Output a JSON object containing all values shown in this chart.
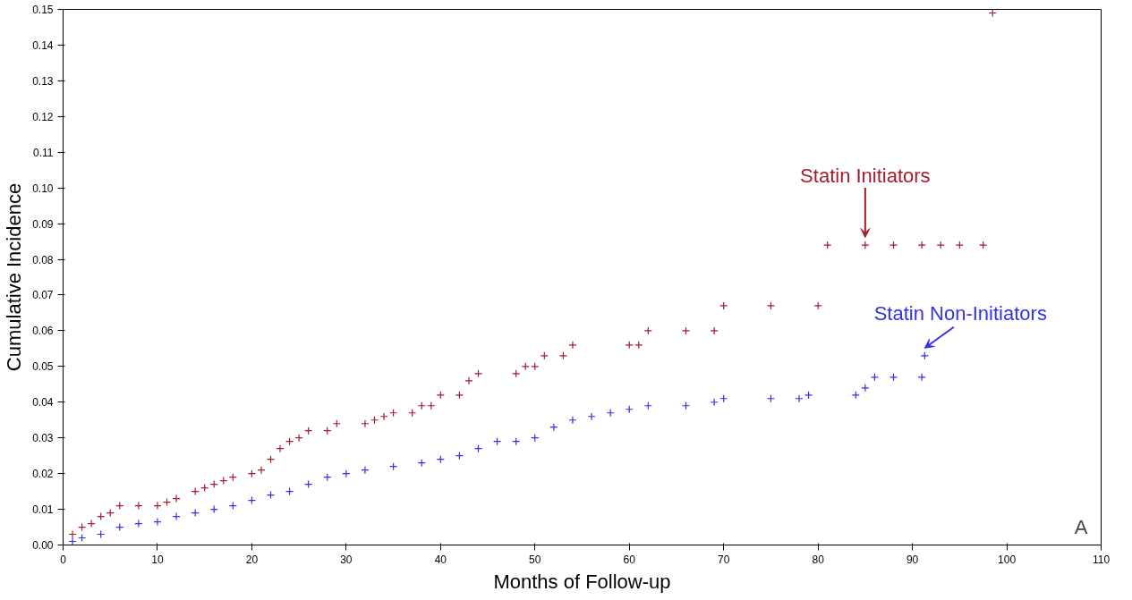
{
  "chart_data": {
    "type": "scatter",
    "xlabel": "Months of Follow-up",
    "ylabel": "Cumulative Incidence",
    "marker": "cross",
    "grid": false,
    "legend": false,
    "xlim": [
      0,
      110
    ],
    "xticks": [
      0,
      10,
      20,
      30,
      40,
      50,
      60,
      70,
      80,
      90,
      100,
      110
    ],
    "ylim": [
      0,
      0.15
    ],
    "yticks": [
      {
        "value": 0,
        "label": "0.00"
      },
      {
        "value": 0.01,
        "label": "0.01"
      },
      {
        "value": 0.02,
        "label": "0.02"
      },
      {
        "value": 0.03,
        "label": "0.03"
      },
      {
        "value": 0.04,
        "label": "0.04"
      },
      {
        "value": 0.05,
        "label": "0.05"
      },
      {
        "value": 0.06,
        "label": "0.06"
      },
      {
        "value": 0.07,
        "label": "0.07"
      },
      {
        "value": 0.08,
        "label": "0.08"
      },
      {
        "value": 0.09,
        "label": "0.09"
      },
      {
        "value": 0.1,
        "label": "0.10"
      },
      {
        "value": 0.11,
        "label": "0.11"
      },
      {
        "value": 0.12,
        "label": "0.12"
      },
      {
        "value": 0.13,
        "label": "0.13"
      },
      {
        "value": 0.14,
        "label": "0.14"
      },
      {
        "value": 0.15,
        "label": "0.15"
      }
    ],
    "series": [
      {
        "name": "Statin Initiators",
        "color": "#a51c30",
        "x": [
          0,
          1,
          2,
          3,
          4,
          5,
          6,
          8,
          10,
          11,
          12,
          14,
          15,
          16,
          17,
          18,
          20,
          21,
          22,
          23,
          24,
          25,
          26,
          28,
          29,
          32,
          33,
          34,
          35,
          37,
          38,
          39,
          40,
          42,
          43,
          44,
          48,
          49,
          50,
          51,
          53,
          54,
          60,
          61,
          62,
          66,
          69,
          70,
          75,
          80,
          81,
          85,
          88,
          91,
          93,
          95,
          97.5,
          98.5
        ],
        "values": [
          0,
          0.003,
          0.005,
          0.006,
          0.008,
          0.009,
          0.011,
          0.011,
          0.011,
          0.012,
          0.013,
          0.015,
          0.016,
          0.017,
          0.018,
          0.019,
          0.02,
          0.021,
          0.024,
          0.027,
          0.029,
          0.03,
          0.032,
          0.032,
          0.034,
          0.034,
          0.035,
          0.036,
          0.037,
          0.037,
          0.039,
          0.039,
          0.042,
          0.042,
          0.046,
          0.048,
          0.048,
          0.05,
          0.05,
          0.053,
          0.053,
          0.056,
          0.056,
          0.056,
          0.06,
          0.06,
          0.06,
          0.067,
          0.067,
          0.067,
          0.084,
          0.084,
          0.084,
          0.084,
          0.084,
          0.084,
          0.084,
          0.149
        ]
      },
      {
        "name": "Statin Non-Initiators",
        "color": "#3333e6",
        "x": [
          0,
          1,
          2,
          4,
          6,
          8,
          10,
          12,
          14,
          16,
          18,
          20,
          22,
          24,
          26,
          28,
          30,
          32,
          35,
          38,
          40,
          42,
          44,
          46,
          48,
          50,
          52,
          54,
          56,
          58,
          60,
          62,
          66,
          69,
          70,
          75,
          78,
          79,
          84,
          85,
          86,
          88,
          91,
          91.3
        ],
        "values": [
          0,
          0.001,
          0.002,
          0.003,
          0.005,
          0.006,
          0.0065,
          0.008,
          0.009,
          0.01,
          0.011,
          0.0125,
          0.014,
          0.015,
          0.017,
          0.019,
          0.02,
          0.021,
          0.022,
          0.023,
          0.024,
          0.025,
          0.027,
          0.029,
          0.029,
          0.03,
          0.033,
          0.035,
          0.036,
          0.037,
          0.038,
          0.039,
          0.039,
          0.04,
          0.041,
          0.041,
          0.041,
          0.042,
          0.042,
          0.044,
          0.047,
          0.047,
          0.047,
          0.053
        ]
      }
    ],
    "annotations": [
      "A"
    ]
  }
}
